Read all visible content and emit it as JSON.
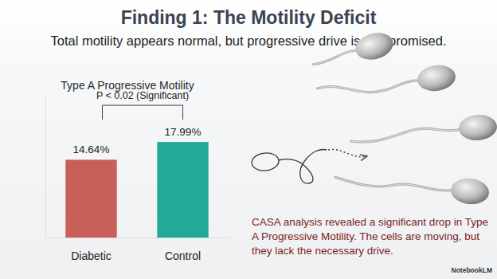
{
  "header": {
    "title": "Finding 1: The Motility Deficit",
    "subtitle": "Total motility appears normal, but progressive drive is compromised."
  },
  "chart_data": {
    "type": "bar",
    "title": "Type A Progressive Motility",
    "categories": [
      "Diabetic",
      "Control"
    ],
    "values": [
      14.64,
      17.99
    ],
    "value_labels": [
      "14.64%",
      "17.99%"
    ],
    "data_labels": true,
    "colors": [
      "#c95f59",
      "#23a99a"
    ],
    "ylim": [
      0,
      27
    ],
    "tick_labels": "x",
    "grid": false,
    "annotations": [
      "P < 0.02 (Significant)"
    ]
  },
  "caption": [
    "CASA analysis revealed a significant drop in Type",
    "A Progressive Motility. The cells are moving, but",
    "they lack the necessary drive."
  ],
  "watermark": "NotebookLM"
}
